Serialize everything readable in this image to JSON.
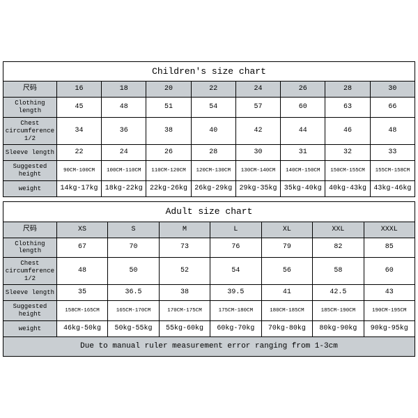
{
  "children_table": {
    "title": "Children's size chart",
    "label_header": "尺码",
    "sizes": [
      "16",
      "18",
      "20",
      "22",
      "24",
      "26",
      "28",
      "30"
    ],
    "rows": [
      {
        "label": "Clothing length",
        "values": [
          "45",
          "48",
          "51",
          "54",
          "57",
          "60",
          "63",
          "66"
        ]
      },
      {
        "label": "Chest circumference 1/2",
        "values": [
          "34",
          "36",
          "38",
          "40",
          "42",
          "44",
          "46",
          "48"
        ]
      },
      {
        "label": "Sleeve length",
        "values": [
          "22",
          "24",
          "26",
          "28",
          "30",
          "31",
          "32",
          "33"
        ]
      },
      {
        "label": "Suggested height",
        "values": [
          "90CM-100CM",
          "100CM-110CM",
          "110CM-120CM",
          "120CM-130CM",
          "130CM-140CM",
          "140CM-150CM",
          "150CM-155CM",
          "155CM-158CM"
        ],
        "small": true
      },
      {
        "label": "weight",
        "values": [
          "14kg-17kg",
          "18kg-22kg",
          "22kg-26kg",
          "26kg-29kg",
          "29kg-35kg",
          "35kg-40kg",
          "40kg-43kg",
          "43kg-46kg"
        ]
      }
    ],
    "colors": {
      "header_bg": "#c9ced2",
      "cell_bg": "#ffffff",
      "border": "#000000"
    }
  },
  "adult_table": {
    "title": "Adult size chart",
    "label_header": "尺码",
    "sizes": [
      "XS",
      "S",
      "M",
      "L",
      "XL",
      "XXL",
      "XXXL"
    ],
    "rows": [
      {
        "label": "Clothing length",
        "values": [
          "67",
          "70",
          "73",
          "76",
          "79",
          "82",
          "85"
        ]
      },
      {
        "label": "Chest circumference 1/2",
        "values": [
          "48",
          "50",
          "52",
          "54",
          "56",
          "58",
          "60"
        ]
      },
      {
        "label": "Sleeve length",
        "values": [
          "35",
          "36.5",
          "38",
          "39.5",
          "41",
          "42.5",
          "43"
        ]
      },
      {
        "label": "Suggested height",
        "values": [
          "158CM-165CM",
          "165CM-170CM",
          "170CM-175CM",
          "175CM-180CM",
          "180CM-185CM",
          "185CM-190CM",
          "190CM-195CM"
        ],
        "small": true
      },
      {
        "label": "weight",
        "values": [
          "46kg-50kg",
          "50kg-55kg",
          "55kg-60kg",
          "60kg-70kg",
          "70kg-80kg",
          "80kg-90kg",
          "90kg-95kg"
        ]
      }
    ],
    "note": "Due to manual ruler measurement error ranging from 1-3cm",
    "colors": {
      "header_bg": "#c9ced2",
      "cell_bg": "#ffffff",
      "border": "#000000"
    }
  }
}
